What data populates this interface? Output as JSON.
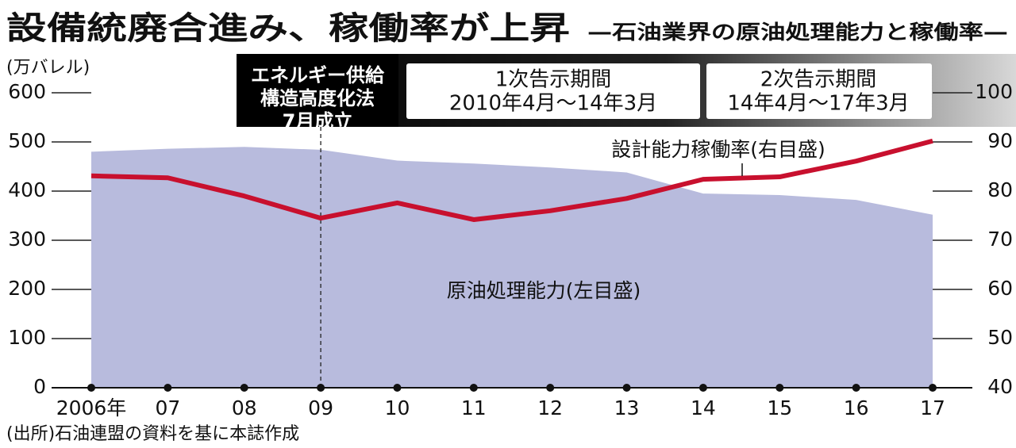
{
  "chart_data": {
    "type": "area_line",
    "title": "設備統廃合進み、稼働率が上昇",
    "subtitle": "—石油業界の原油処理能力と稼働率—",
    "y_label": "(万バレル)",
    "y2_label": "(%)",
    "categories": [
      "2006年",
      "07",
      "08",
      "09",
      "10",
      "11",
      "12",
      "13",
      "14",
      "15",
      "16",
      "17"
    ],
    "series": [
      {
        "name": "原油処理能力(左目盛)",
        "color": "#b8bbdd",
        "values": [
          480,
          486,
          490,
          484,
          462,
          456,
          448,
          438,
          395,
          392,
          382,
          352
        ]
      },
      {
        "name": "設計能力稼働率(右目盛)",
        "color": "#c8102e",
        "axis": "y2",
        "values": [
          83.1,
          82.7,
          79,
          74.5,
          77.6,
          74.2,
          76,
          78.5,
          82.4,
          82.9,
          86.1,
          90.2
        ]
      }
    ],
    "ylim": [
      0,
      600
    ],
    "yticks": [
      0,
      100,
      200,
      300,
      400,
      500,
      600
    ],
    "y2lim": [
      40,
      100
    ],
    "y2ticks": [
      40,
      50,
      60,
      70,
      80,
      90,
      100
    ],
    "law_note": [
      "エネルギー供給",
      "構造高度化法",
      "7月成立"
    ],
    "periods": [
      {
        "title": "1次告示期間",
        "range": "2010年4月〜14年3月"
      },
      {
        "title": "2次告示期間",
        "range": "14年4月〜17年3月"
      }
    ],
    "source": "(出所)石油連盟の資料を基に本誌作成"
  }
}
